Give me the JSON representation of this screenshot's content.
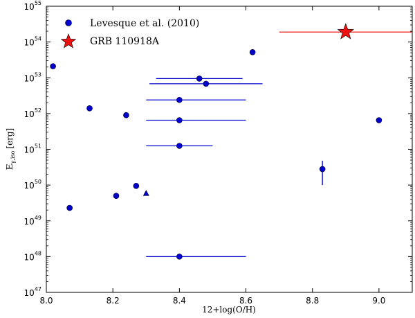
{
  "chart_data": {
    "type": "scatter",
    "title": "",
    "xlabel": "12+log(O/H)",
    "ylabel_main": "E",
    "ylabel_sub": "γ,iso",
    "ylabel_unit": "[erg]",
    "xlim": [
      8.0,
      9.1
    ],
    "ylim_log10": [
      47,
      55
    ],
    "yscale": "log",
    "grid": false,
    "legend_position": "top-left",
    "xticks": [
      {
        "value": 8.0,
        "label": "8.0"
      },
      {
        "value": 8.2,
        "label": "8.2"
      },
      {
        "value": 8.4,
        "label": "8.4"
      },
      {
        "value": 8.6,
        "label": "8.6"
      },
      {
        "value": 8.8,
        "label": "8.8"
      },
      {
        "value": 9.0,
        "label": "9.0"
      }
    ],
    "yticks": [
      {
        "exp": 47,
        "base": "10",
        "power": "47"
      },
      {
        "exp": 48,
        "base": "10",
        "power": "48"
      },
      {
        "exp": 49,
        "base": "10",
        "power": "49"
      },
      {
        "exp": 50,
        "base": "10",
        "power": "50"
      },
      {
        "exp": 51,
        "base": "10",
        "power": "51"
      },
      {
        "exp": 52,
        "base": "10",
        "power": "52"
      },
      {
        "exp": 53,
        "base": "10",
        "power": "53"
      },
      {
        "exp": 54,
        "base": "10",
        "power": "54"
      },
      {
        "exp": 55,
        "base": "10",
        "power": "55"
      }
    ],
    "series": [
      {
        "name": "Levesque et al. (2010)",
        "marker": "circle",
        "color": "#0000cc",
        "points": [
          {
            "x": 8.02,
            "y": 2.1e+53
          },
          {
            "x": 8.07,
            "y": 2.3e+49
          },
          {
            "x": 8.13,
            "y": 1.4e+52
          },
          {
            "x": 8.21,
            "y": 5e+49
          },
          {
            "x": 8.24,
            "y": 9e+51
          },
          {
            "x": 8.27,
            "y": 9.5e+49
          },
          {
            "x": 8.4,
            "y": 2.4e+52,
            "xerr": [
              8.3,
              8.6
            ]
          },
          {
            "x": 8.4,
            "y": 6.5e+51,
            "xerr": [
              8.3,
              8.6
            ]
          },
          {
            "x": 8.4,
            "y": 1.25e+51,
            "xerr": [
              8.3,
              8.5
            ]
          },
          {
            "x": 8.4,
            "y": 1e+48,
            "xerr": [
              8.3,
              8.6
            ]
          },
          {
            "x": 8.46,
            "y": 9.5e+52,
            "xerr": [
              8.33,
              8.59
            ]
          },
          {
            "x": 8.48,
            "y": 6.8e+52,
            "xerr": [
              8.31,
              8.65
            ]
          },
          {
            "x": 8.62,
            "y": 5.2e+53
          },
          {
            "x": 8.83,
            "y": 2.8e+50,
            "yerr": [
              1e+50,
              4.8e+50
            ]
          },
          {
            "x": 9.0,
            "y": 6.5e+51
          }
        ],
        "triangle_points": [
          {
            "x": 8.3,
            "y": 5.8e+49
          }
        ]
      },
      {
        "name": "GRB 110918A",
        "marker": "star",
        "color": "#ee1111",
        "points": [
          {
            "x": 8.9,
            "y": 1.9e+54,
            "xerr": [
              8.7,
              9.1
            ]
          }
        ]
      }
    ]
  }
}
